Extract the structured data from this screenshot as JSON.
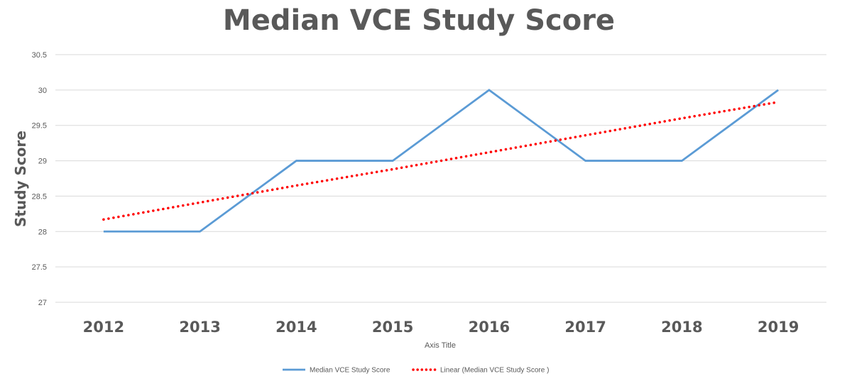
{
  "chart_data": {
    "type": "line",
    "title": "Median VCE Study Score",
    "xlabel": "Axis Title",
    "ylabel": "Study Score",
    "categories": [
      "2012",
      "2013",
      "2014",
      "2015",
      "2016",
      "2017",
      "2018",
      "2019"
    ],
    "series": [
      {
        "name": "Median VCE Study Score",
        "values": [
          28,
          28,
          29,
          29,
          30,
          29,
          29,
          30
        ],
        "color": "#5B9BD5",
        "style": "solid"
      },
      {
        "name": "Linear (Median VCE Study Score )",
        "type": "trendline",
        "values": [
          28.17,
          28.41,
          28.65,
          28.88,
          29.12,
          29.36,
          29.6,
          29.83
        ],
        "color": "#FF0000",
        "style": "dotted"
      }
    ],
    "ylim": [
      27,
      30.5
    ],
    "yticks": [
      "27",
      "27.5",
      "28",
      "28.5",
      "29",
      "29.5",
      "30",
      "30.5"
    ],
    "grid": true,
    "legend_position": "bottom"
  }
}
